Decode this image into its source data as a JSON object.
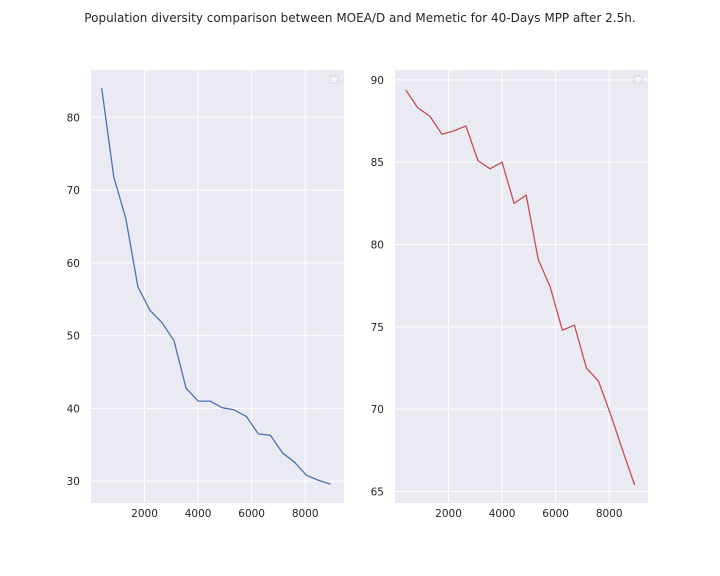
{
  "figure": {
    "title": "Population diversity comparison between MOEA/D and Memetic for 40-Days MPP after 2.5h."
  },
  "colors": {
    "background": "#EAEAF2",
    "grid": "#FFFFFF",
    "series_left": "#4C72B0",
    "series_right": "#C44E52"
  },
  "chart_data": [
    {
      "type": "line",
      "title": "",
      "xlabel": "",
      "ylabel": "",
      "grid": true,
      "legend": "top-right (empty)",
      "xlim": [
        0,
        9450
      ],
      "ylim": [
        27,
        86.5
      ],
      "xticks": [
        2000,
        4000,
        6000,
        8000
      ],
      "yticks": [
        30,
        40,
        50,
        60,
        70,
        80
      ],
      "series": [
        {
          "color": "#4C72B0",
          "x": [
            400,
            850,
            1300,
            1750,
            2200,
            2650,
            3100,
            3550,
            4000,
            4450,
            4900,
            5350,
            5800,
            6250,
            6700,
            7150,
            7600,
            8050,
            8500,
            8950
          ],
          "y": [
            84.0,
            71.8,
            66.1,
            56.7,
            53.5,
            51.8,
            49.3,
            42.8,
            41.0,
            41.0,
            40.1,
            39.8,
            38.9,
            36.5,
            36.3,
            33.9,
            32.6,
            30.8,
            30.1,
            29.6
          ]
        }
      ]
    },
    {
      "type": "line",
      "title": "",
      "xlabel": "",
      "ylabel": "",
      "grid": true,
      "legend": "top-right (empty)",
      "xlim": [
        0,
        9450
      ],
      "ylim": [
        64.3,
        90.6
      ],
      "xticks": [
        2000,
        4000,
        6000,
        8000
      ],
      "yticks": [
        65,
        70,
        75,
        80,
        85,
        90
      ],
      "series": [
        {
          "color": "#C44E52",
          "x": [
            400,
            850,
            1300,
            1750,
            2200,
            2650,
            3100,
            3550,
            4000,
            4450,
            4900,
            5350,
            5800,
            6250,
            6700,
            7150,
            7600,
            8050,
            8500,
            8950
          ],
          "y": [
            89.4,
            88.3,
            87.8,
            86.7,
            86.9,
            87.2,
            85.1,
            84.6,
            85.0,
            82.5,
            83.0,
            79.1,
            77.4,
            74.8,
            75.1,
            72.5,
            71.7,
            69.7,
            67.5,
            65.4
          ]
        }
      ]
    }
  ]
}
